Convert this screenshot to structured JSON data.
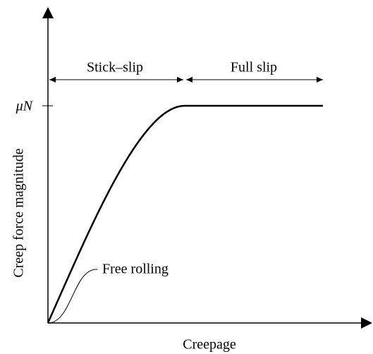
{
  "axes": {
    "x_label": "Creepage",
    "y_label": "Creep force magnitude",
    "y_tick": "μN"
  },
  "regions": [
    {
      "label": "Stick–slip"
    },
    {
      "label": "Full slip"
    }
  ],
  "annotation": "Free rolling"
}
